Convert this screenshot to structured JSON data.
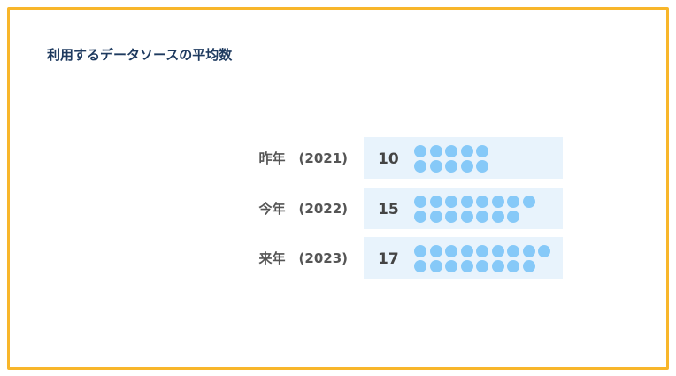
{
  "title": "利用するデータソースの平均数",
  "chart_data": {
    "type": "pictogram",
    "title": "利用するデータソースの平均数",
    "categories": [
      "昨年 (2021)",
      "今年 (2022)",
      "来年 (2023)"
    ],
    "values": [
      10,
      15,
      17
    ],
    "rows": [
      {
        "label": "昨年　(2021)",
        "value": "10",
        "count": 10
      },
      {
        "label": "今年　(2022)",
        "value": "15",
        "count": 15
      },
      {
        "label": "来年　(2023)",
        "value": "17",
        "count": 17
      }
    ],
    "colors": {
      "dot": "#86c9f8",
      "panel": "#e8f3fc",
      "frame": "#f8b62a",
      "title": "#1e3a5f"
    }
  }
}
